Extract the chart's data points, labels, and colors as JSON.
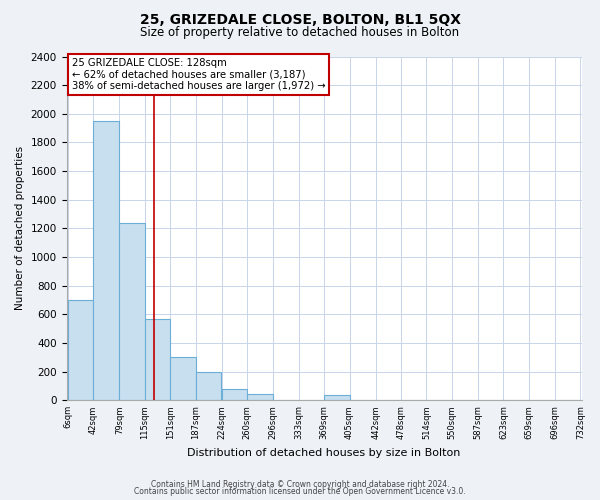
{
  "title": "25, GRIZEDALE CLOSE, BOLTON, BL1 5QX",
  "subtitle": "Size of property relative to detached houses in Bolton",
  "xlabel": "Distribution of detached houses by size in Bolton",
  "ylabel": "Number of detached properties",
  "bar_left_edges": [
    6,
    42,
    79,
    115,
    151,
    187,
    224,
    260,
    296,
    333,
    369,
    405,
    442,
    478,
    514,
    550,
    587,
    623,
    659,
    696
  ],
  "bar_heights": [
    700,
    1950,
    1235,
    570,
    300,
    200,
    80,
    45,
    0,
    0,
    35,
    0,
    0,
    0,
    0,
    0,
    0,
    0,
    0,
    0
  ],
  "bin_width": 36,
  "tick_labels": [
    "6sqm",
    "42sqm",
    "79sqm",
    "115sqm",
    "151sqm",
    "187sqm",
    "224sqm",
    "260sqm",
    "296sqm",
    "333sqm",
    "369sqm",
    "405sqm",
    "442sqm",
    "478sqm",
    "514sqm",
    "550sqm",
    "587sqm",
    "623sqm",
    "659sqm",
    "696sqm",
    "732sqm"
  ],
  "bar_color": "#c8dff0",
  "bar_edge_color": "#6baed6",
  "vline_x": 128,
  "vline_color": "#c00000",
  "ylim": [
    0,
    2400
  ],
  "yticks": [
    0,
    200,
    400,
    600,
    800,
    1000,
    1200,
    1400,
    1600,
    1800,
    2000,
    2200,
    2400
  ],
  "annotation_line1": "25 GRIZEDALE CLOSE: 128sqm",
  "annotation_line2": "← 62% of detached houses are smaller (3,187)",
  "annotation_line3": "38% of semi-detached houses are larger (1,972) →",
  "footer_line1": "Contains HM Land Registry data © Crown copyright and database right 2024.",
  "footer_line2": "Contains public sector information licensed under the Open Government Licence v3.0.",
  "background_color": "#eef2f7",
  "plot_bg_color": "#ffffff",
  "grid_color": "#c8d4e8"
}
